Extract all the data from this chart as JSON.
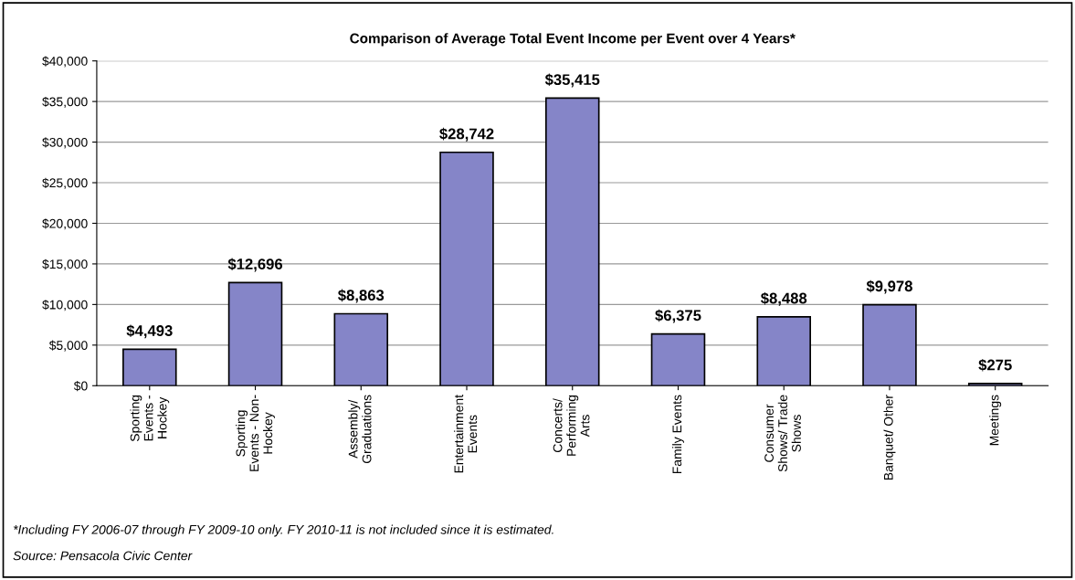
{
  "chart_data": {
    "type": "bar",
    "title": "Comparison of Average Total Event Income per Event over 4 Years*",
    "categories": [
      "Sporting\nEvents -\nHockey",
      "Sporting\nEvents - Non-\nHockey",
      "Assembly/\nGraduations",
      "Entertainment\nEvents",
      "Concerts/\nPerforming\nArts",
      "Family Events",
      "Consumer\nShows/ Trade\nShows",
      "Banquet/ Other",
      "Meetings"
    ],
    "values": [
      4493,
      12696,
      8863,
      28742,
      35415,
      6375,
      8488,
      9978,
      275
    ],
    "value_labels": [
      "$4,493",
      "$12,696",
      "$8,863",
      "$28,742",
      "$35,415",
      "$6,375",
      "$8,488",
      "$9,978",
      "$275"
    ],
    "color": "#8585c8",
    "ylim": [
      0,
      40000
    ],
    "yticks": [
      {
        "value": 0,
        "label": "$0"
      },
      {
        "value": 5000,
        "label": "$5,000"
      },
      {
        "value": 10000,
        "label": "$10,000"
      },
      {
        "value": 15000,
        "label": "$15,000"
      },
      {
        "value": 20000,
        "label": "$20,000"
      },
      {
        "value": 25000,
        "label": "$25,000"
      },
      {
        "value": 30000,
        "label": "$30,000"
      },
      {
        "value": 35000,
        "label": "$35,000"
      },
      {
        "value": 40000,
        "label": "$40,000"
      }
    ],
    "grid": "y",
    "annotations": [
      "*Including FY 2006-07 through FY 2009-10 only. FY 2010-11 is not included since it is estimated.",
      "Source: Pensacola Civic Center"
    ]
  }
}
